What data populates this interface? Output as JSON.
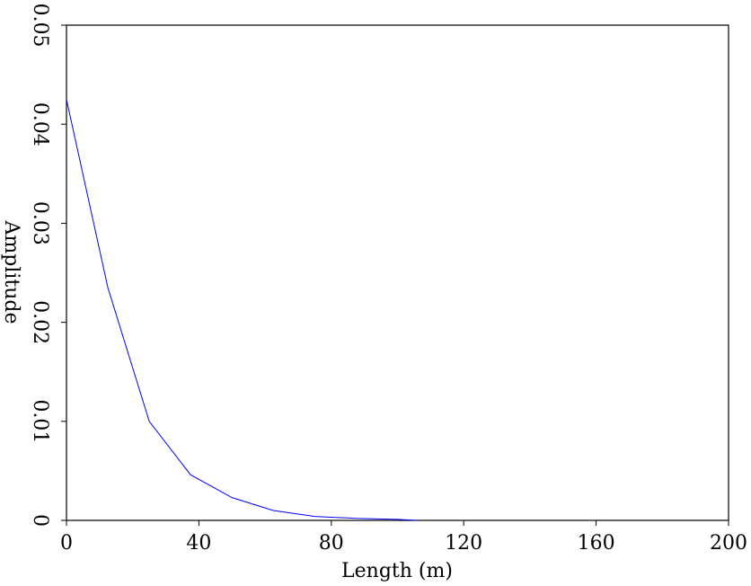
{
  "chart_data": {
    "type": "line",
    "x_label": "Length (m)",
    "y_label": "Amplitude",
    "x": [
      0,
      12.5,
      25,
      37.5,
      50,
      62.5,
      75,
      87.5,
      100,
      106
    ],
    "series": [
      {
        "color": "#0000ff",
        "values": [
          0.0425,
          0.0235,
          0.01,
          0.0046,
          0.0023,
          0.001,
          0.0004,
          0.0002,
          0.0001,
          0
        ]
      }
    ],
    "xlim": [
      0,
      200
    ],
    "xticks": [
      0,
      40,
      80,
      120,
      160,
      200
    ],
    "ylim": [
      0,
      0.05
    ],
    "yticks": [
      0,
      0.01,
      0.02,
      0.03,
      0.04,
      0.05
    ],
    "grid": false
  }
}
